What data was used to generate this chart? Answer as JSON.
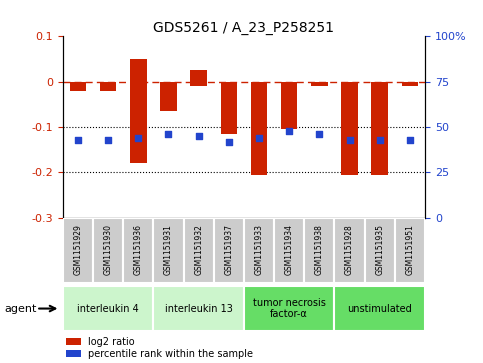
{
  "title": "GDS5261 / A_23_P258251",
  "samples": [
    "GSM1151929",
    "GSM1151930",
    "GSM1151936",
    "GSM1151931",
    "GSM1151932",
    "GSM1151937",
    "GSM1151933",
    "GSM1151934",
    "GSM1151938",
    "GSM1151928",
    "GSM1151935",
    "GSM1151951"
  ],
  "log2_ratio": [
    -0.02,
    -0.02,
    -0.18,
    -0.065,
    -0.01,
    -0.115,
    -0.205,
    -0.105,
    -0.01,
    -0.205,
    -0.205,
    -0.01
  ],
  "log2_ratio_top": [
    0.0,
    0.0,
    0.05,
    0.0,
    0.025,
    0.0,
    0.0,
    0.0,
    0.0,
    0.0,
    0.0,
    0.0
  ],
  "percentile_pct": [
    43,
    43,
    44,
    46,
    45,
    42,
    44,
    48,
    46,
    43,
    43,
    43
  ],
  "ylim_left": [
    -0.3,
    0.1
  ],
  "ylim_right": [
    0,
    100
  ],
  "yticks_left": [
    -0.3,
    -0.2,
    -0.1,
    0.0,
    0.1
  ],
  "yticks_right": [
    0,
    25,
    50,
    75,
    100
  ],
  "hline_dashed": 0.0,
  "hline_dot1": -0.1,
  "hline_dot2": -0.2,
  "groups": [
    {
      "label": "interleukin 4",
      "start": 0,
      "end": 3,
      "color": "#ccf5cc"
    },
    {
      "label": "interleukin 13",
      "start": 3,
      "end": 6,
      "color": "#ccf5cc"
    },
    {
      "label": "tumor necrosis\nfactor-α",
      "start": 6,
      "end": 9,
      "color": "#66dd66"
    },
    {
      "label": "unstimulated",
      "start": 9,
      "end": 12,
      "color": "#66dd66"
    }
  ],
  "bar_color": "#cc2200",
  "dot_color": "#2244cc",
  "bg_color": "#ffffff",
  "sample_box_color": "#cccccc",
  "agent_label": "agent",
  "legend_items": [
    "log2 ratio",
    "percentile rank within the sample"
  ],
  "legend_colors": [
    "#cc2200",
    "#2244cc"
  ]
}
